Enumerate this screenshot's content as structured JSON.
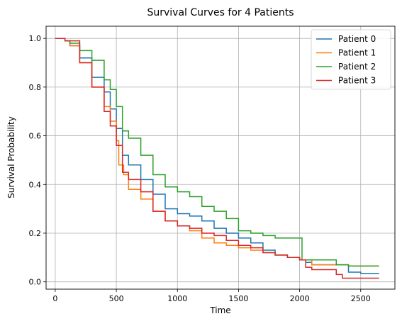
{
  "chart_data": {
    "type": "line",
    "title": "Survival Curves for 4 Patients",
    "xlabel": "Time",
    "ylabel": "Survival Probability",
    "xlim": [
      -75,
      2780
    ],
    "ylim": [
      -0.03,
      1.05
    ],
    "xticks": [
      0,
      500,
      1000,
      1500,
      2000,
      2500
    ],
    "yticks": [
      0.0,
      0.2,
      0.4,
      0.6,
      0.8,
      1.0
    ],
    "ytick_labels": [
      "0.0",
      "0.2",
      "0.4",
      "0.6",
      "0.8",
      "1.0"
    ],
    "grid": true,
    "legend_position": "top-right",
    "series": [
      {
        "name": "Patient 0",
        "color": "#1f77b4",
        "x": [
          0,
          80,
          120,
          200,
          300,
          400,
          450,
          500,
          550,
          600,
          700,
          800,
          900,
          1000,
          1100,
          1200,
          1300,
          1400,
          1500,
          1600,
          1700,
          1800,
          1900,
          2000,
          2050,
          2100,
          2200,
          2300,
          2400,
          2500,
          2650
        ],
        "y": [
          1.0,
          0.99,
          0.97,
          0.92,
          0.84,
          0.78,
          0.71,
          0.63,
          0.52,
          0.48,
          0.42,
          0.36,
          0.3,
          0.28,
          0.27,
          0.25,
          0.22,
          0.2,
          0.18,
          0.16,
          0.13,
          0.11,
          0.1,
          0.09,
          0.08,
          0.07,
          0.07,
          0.07,
          0.04,
          0.035,
          0.035
        ]
      },
      {
        "name": "Patient 1",
        "color": "#ff7f0e",
        "x": [
          0,
          80,
          120,
          200,
          300,
          400,
          450,
          500,
          520,
          560,
          600,
          700,
          800,
          900,
          1000,
          1100,
          1200,
          1300,
          1400,
          1500,
          1600,
          1700,
          1800,
          1900,
          2000,
          2100,
          2200,
          2300,
          2400,
          2500,
          2650
        ],
        "y": [
          1.0,
          0.99,
          0.97,
          0.9,
          0.8,
          0.72,
          0.66,
          0.58,
          0.48,
          0.44,
          0.38,
          0.34,
          0.29,
          0.25,
          0.23,
          0.21,
          0.18,
          0.16,
          0.15,
          0.14,
          0.13,
          0.12,
          0.11,
          0.1,
          0.09,
          0.07,
          0.07,
          0.07,
          0.065,
          0.065,
          0.065
        ]
      },
      {
        "name": "Patient 2",
        "color": "#2ca02c",
        "x": [
          0,
          80,
          120,
          200,
          300,
          400,
          450,
          500,
          550,
          600,
          700,
          800,
          900,
          1000,
          1100,
          1200,
          1300,
          1400,
          1500,
          1600,
          1700,
          1800,
          1900,
          2000,
          2020,
          2100,
          2200,
          2300,
          2400,
          2500,
          2650
        ],
        "y": [
          1.0,
          0.99,
          0.98,
          0.95,
          0.91,
          0.83,
          0.79,
          0.72,
          0.62,
          0.59,
          0.52,
          0.44,
          0.39,
          0.37,
          0.35,
          0.31,
          0.29,
          0.26,
          0.21,
          0.2,
          0.19,
          0.18,
          0.18,
          0.18,
          0.09,
          0.09,
          0.09,
          0.07,
          0.065,
          0.065,
          0.065
        ]
      },
      {
        "name": "Patient 3",
        "color": "#d62728",
        "x": [
          0,
          80,
          120,
          200,
          300,
          400,
          450,
          500,
          550,
          600,
          700,
          800,
          900,
          1000,
          1100,
          1200,
          1300,
          1400,
          1500,
          1600,
          1700,
          1800,
          1900,
          2000,
          2050,
          2100,
          2200,
          2300,
          2350,
          2400,
          2650
        ],
        "y": [
          1.0,
          0.99,
          0.99,
          0.9,
          0.8,
          0.7,
          0.64,
          0.56,
          0.45,
          0.42,
          0.37,
          0.29,
          0.25,
          0.23,
          0.22,
          0.2,
          0.19,
          0.17,
          0.15,
          0.14,
          0.12,
          0.11,
          0.1,
          0.09,
          0.06,
          0.05,
          0.05,
          0.03,
          0.015,
          0.015,
          0.015
        ]
      }
    ]
  }
}
